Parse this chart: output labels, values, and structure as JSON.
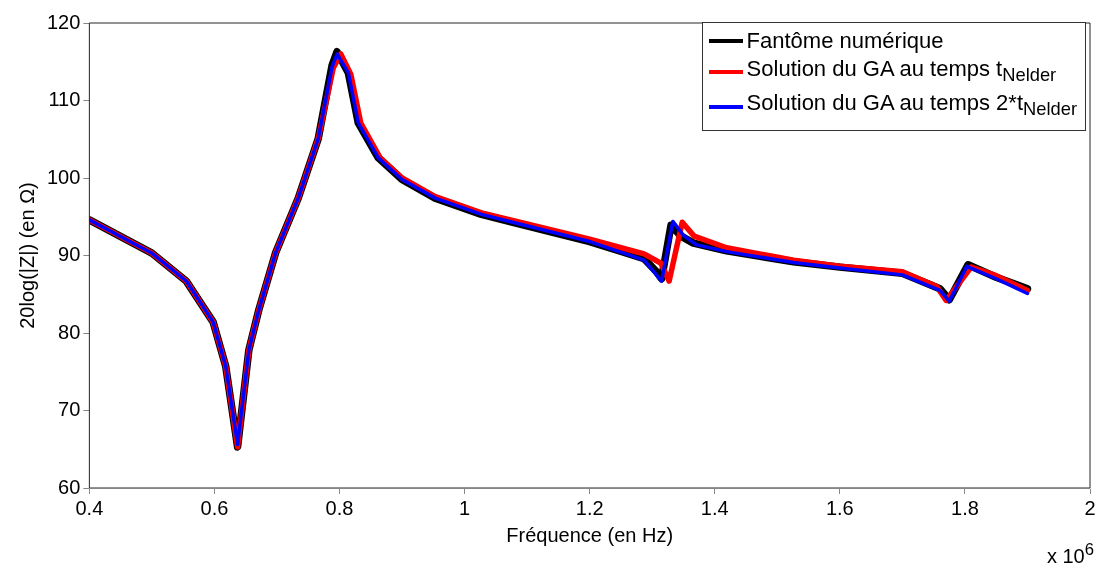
{
  "chart_data": {
    "type": "line",
    "xlabel": "Fréquence (en Hz)",
    "ylabel": "20log(|Z|) (en Ω)",
    "annotations": [
      "x 10$^{6}$"
    ],
    "xlim": [
      0.4,
      2
    ],
    "xticks": [
      0.4,
      0.6,
      0.8,
      1,
      1.2,
      1.4,
      1.6,
      1.8,
      2
    ],
    "ylim": [
      60,
      120
    ],
    "yticks": [
      60,
      70,
      80,
      90,
      100,
      110,
      120
    ],
    "grid": false,
    "legend": "top right",
    "marker": "none",
    "line_style": "solid",
    "series": [
      {
        "name": "Fantôme numérique",
        "color": "#000000",
        "x": [
          0.4,
          0.5,
          0.555,
          0.598,
          0.618,
          0.637,
          0.655,
          0.671,
          0.698,
          0.734,
          0.766,
          0.788,
          0.796,
          0.814,
          0.83,
          0.862,
          0.9,
          0.953,
          1.027,
          1.2,
          1.287,
          1.308,
          1.315,
          1.33,
          1.346,
          1.366,
          1.419,
          1.526,
          1.6,
          1.7,
          1.76,
          1.775,
          1.805,
          1.85,
          1.9
        ],
        "values": [
          94.6,
          90.3,
          86.7,
          81.4,
          75.7,
          65.3,
          77.8,
          83,
          90.4,
          97.4,
          105.1,
          114.5,
          116.3,
          113.6,
          107.1,
          102.6,
          99.8,
          97.4,
          95.3,
          91.8,
          89.6,
          87.8,
          87,
          93.9,
          92.5,
          91.6,
          90.6,
          89.2,
          88.5,
          87.7,
          85.7,
          84.3,
          88.8,
          87.2,
          85.7
        ]
      },
      {
        "name": "Solution du GA au temps t$_{Nelder}$",
        "color": "#ff0000",
        "x": [
          0.4,
          0.5,
          0.555,
          0.598,
          0.618,
          0.637,
          0.655,
          0.671,
          0.698,
          0.734,
          0.766,
          0.79,
          0.802,
          0.818,
          0.834,
          0.865,
          0.9,
          0.953,
          1.027,
          1.2,
          1.287,
          1.314,
          1.327,
          1.348,
          1.367,
          1.419,
          1.526,
          1.6,
          1.7,
          1.755,
          1.77,
          1.81,
          1.85,
          1.9
        ],
        "values": [
          94.6,
          90.3,
          86.7,
          81.4,
          75.7,
          65.3,
          77.8,
          83,
          90.4,
          97.4,
          105.1,
          114.2,
          116,
          113.4,
          107.1,
          102.6,
          100,
          97.6,
          95.5,
          92.1,
          90.2,
          89,
          86.7,
          94.3,
          92.5,
          91,
          89.4,
          88.6,
          87.9,
          86,
          84.2,
          88.5,
          87.4,
          85.5
        ]
      },
      {
        "name": "Solution du GA au temps 2*t$_{Nelder}$",
        "color": "#0000ff",
        "x": [
          0.4,
          0.5,
          0.555,
          0.598,
          0.618,
          0.637,
          0.655,
          0.671,
          0.698,
          0.734,
          0.766,
          0.788,
          0.796,
          0.814,
          0.83,
          0.862,
          0.9,
          0.953,
          1.027,
          1.2,
          1.287,
          1.315,
          1.333,
          1.35,
          1.37,
          1.419,
          1.526,
          1.6,
          1.7,
          1.76,
          1.775,
          1.803,
          1.85,
          1.9
        ],
        "values": [
          94.6,
          90.3,
          86.7,
          81.4,
          75.7,
          65.6,
          77.8,
          83,
          90.4,
          97.4,
          105.1,
          114.3,
          116,
          113.6,
          107.1,
          102.6,
          99.8,
          97.4,
          95.3,
          91.8,
          89.4,
          86.7,
          94.4,
          92.6,
          91.4,
          90.5,
          89.1,
          88.4,
          87.5,
          85.5,
          84.1,
          88.6,
          87,
          85.1
        ]
      }
    ]
  }
}
